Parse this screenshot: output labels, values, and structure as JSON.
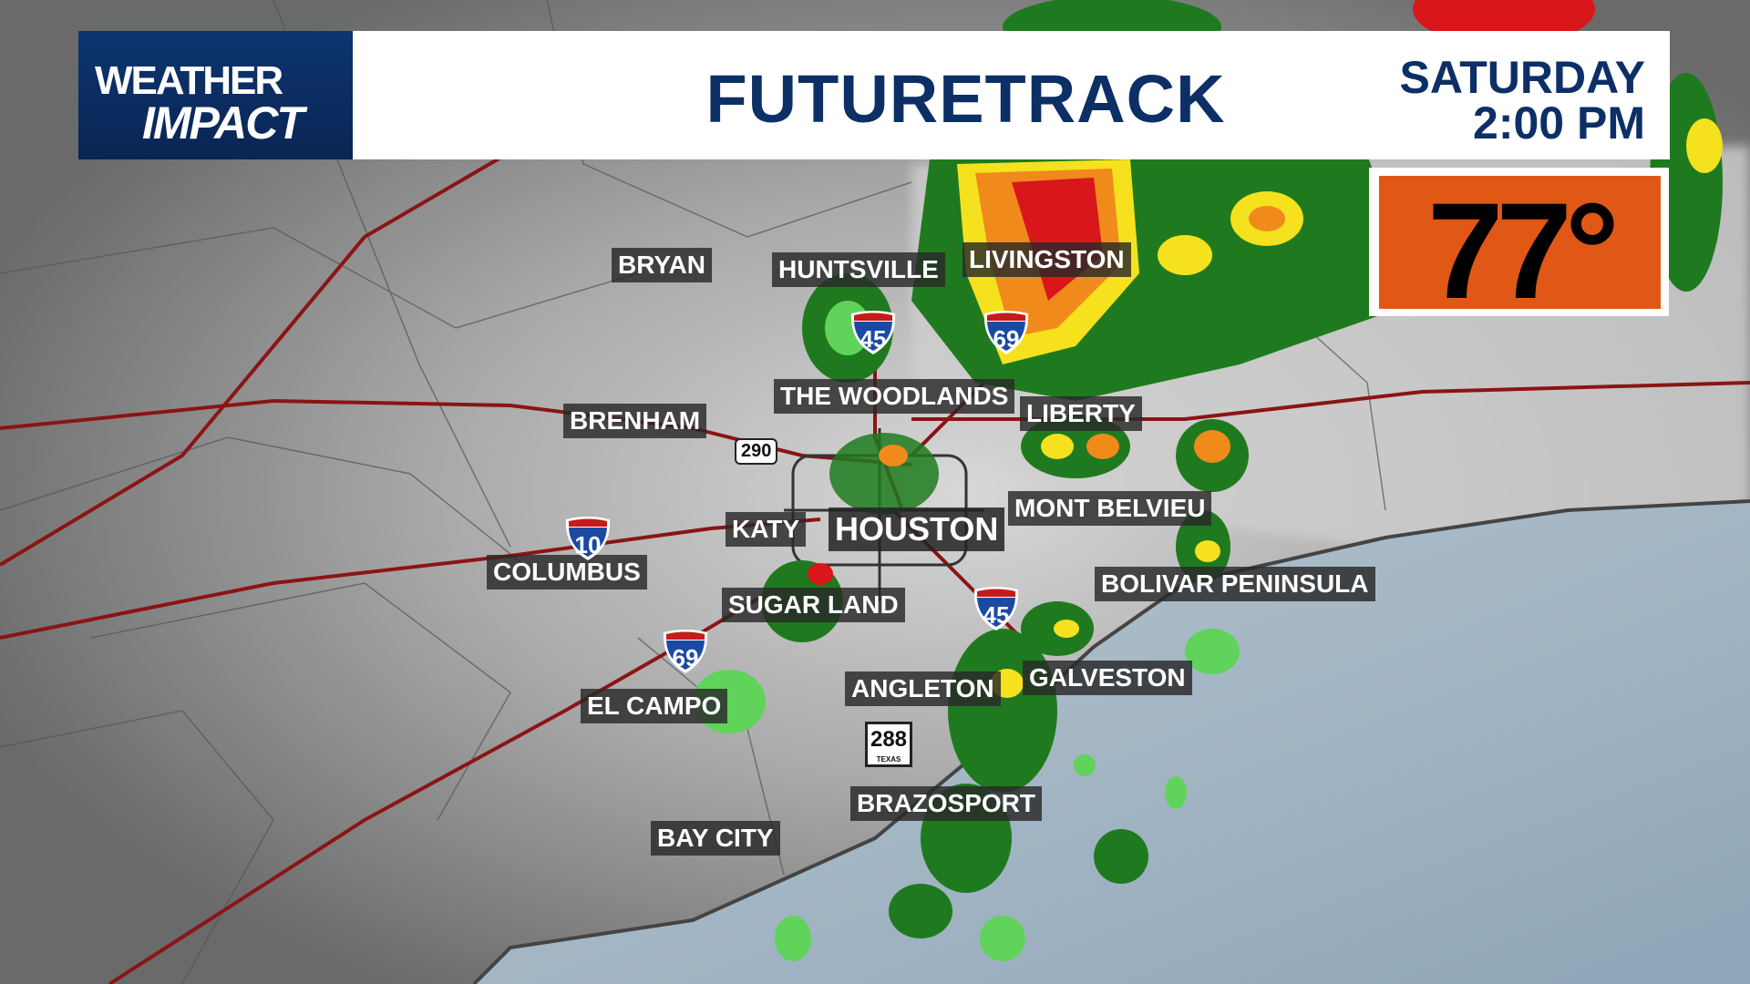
{
  "header": {
    "logo_line1": "WEATHER",
    "logo_line2": "IMPACT",
    "title": "FUTURETRACK",
    "day": "SATURDAY",
    "time": "2:00 PM"
  },
  "temperature": {
    "value": "77°",
    "box_color": "#e05716"
  },
  "colors": {
    "header_navy": "#0c2f66",
    "radar_light": "#5fd35a",
    "radar_green": "#1f7a1f",
    "radar_yellow": "#f5e11d",
    "radar_orange": "#f08a1b",
    "radar_red": "#d9161a",
    "highway": "#8b1414"
  },
  "cities": [
    {
      "name": "BRYAN"
    },
    {
      "name": "HUNTSVILLE"
    },
    {
      "name": "LIVINGSTON"
    },
    {
      "name": "THE WOODLANDS"
    },
    {
      "name": "LIBERTY"
    },
    {
      "name": "BRENHAM"
    },
    {
      "name": "MONT BELVIEU"
    },
    {
      "name": "KATY"
    },
    {
      "name": "HOUSTON"
    },
    {
      "name": "COLUMBUS"
    },
    {
      "name": "BOLIVAR PENINSULA"
    },
    {
      "name": "SUGAR LAND"
    },
    {
      "name": "GALVESTON"
    },
    {
      "name": "ANGLETON"
    },
    {
      "name": "EL CAMPO"
    },
    {
      "name": "BRAZOSPORT"
    },
    {
      "name": "BAY CITY"
    }
  ],
  "shields": {
    "i45_north": "45",
    "i69_north": "69",
    "i10": "10",
    "i69_south": "69",
    "i45_south": "45",
    "us290": "290",
    "tx288": "288",
    "tx288_state": "TEXAS"
  }
}
